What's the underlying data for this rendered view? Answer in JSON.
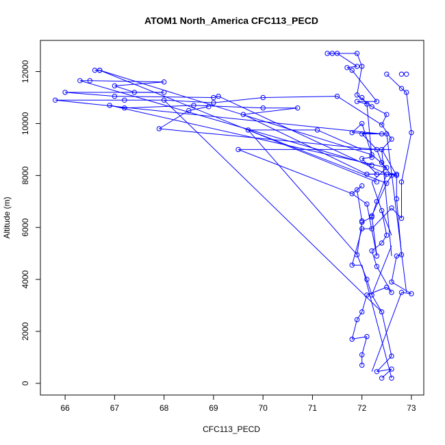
{
  "chart_data": {
    "type": "line",
    "title": "ATOM1 North_America CFC113_PECD",
    "xlabel": "CFC113_PECD",
    "ylabel": "Altitude (m)",
    "xlim": [
      65.5,
      73.25
    ],
    "ylim": [
      -450,
      13200
    ],
    "xticks": [
      66,
      67,
      68,
      69,
      70,
      71,
      72,
      73
    ],
    "yticks": [
      0,
      2000,
      4000,
      6000,
      8000,
      10000,
      12000
    ],
    "grid": false,
    "series_color": "#0000ff",
    "marker": "open-circle",
    "points": [
      [
        72.4,
        200
      ],
      [
        72.6,
        200
      ],
      [
        72.3,
        450
      ],
      [
        72.6,
        550
      ],
      [
        72.6,
        1050
      ],
      [
        72.0,
        700
      ],
      [
        72.0,
        1100
      ],
      [
        72.1,
        1800
      ],
      [
        71.8,
        1700
      ],
      [
        71.9,
        2450
      ],
      [
        72.0,
        2750
      ],
      [
        72.4,
        2750
      ],
      [
        72.1,
        3400
      ],
      [
        72.2,
        3400
      ],
      [
        72.5,
        3700
      ],
      [
        72.6,
        3500
      ],
      [
        72.8,
        3500
      ],
      [
        73.0,
        3450
      ],
      [
        72.6,
        3900
      ],
      [
        72.1,
        4000
      ],
      [
        72.3,
        4500
      ],
      [
        71.8,
        4550
      ],
      [
        71.9,
        4950
      ],
      [
        72.3,
        4900
      ],
      [
        72.7,
        4900
      ],
      [
        72.8,
        4950
      ],
      [
        72.2,
        5100
      ],
      [
        72.4,
        5400
      ],
      [
        72.5,
        5700
      ],
      [
        72.0,
        5950
      ],
      [
        72.2,
        5950
      ],
      [
        72.0,
        6200
      ],
      [
        72.0,
        6250
      ],
      [
        72.2,
        6400
      ],
      [
        72.2,
        6450
      ],
      [
        72.4,
        6650
      ],
      [
        72.6,
        6750
      ],
      [
        72.1,
        6900
      ],
      [
        72.8,
        6350
      ],
      [
        72.7,
        7100
      ],
      [
        72.3,
        7000
      ],
      [
        71.8,
        7300
      ],
      [
        71.9,
        7450
      ],
      [
        72.0,
        7600
      ],
      [
        72.3,
        7750
      ],
      [
        72.5,
        7700
      ],
      [
        72.8,
        7750
      ],
      [
        72.1,
        8050
      ],
      [
        72.3,
        8050
      ],
      [
        72.5,
        8050
      ],
      [
        72.5,
        8300
      ],
      [
        72.7,
        8000
      ],
      [
        72.7,
        8050
      ],
      [
        72.6,
        8000
      ],
      [
        72.2,
        8400
      ],
      [
        72.4,
        8500
      ],
      [
        72.2,
        8700
      ],
      [
        72.0,
        8650
      ],
      [
        72.2,
        8800
      ],
      [
        72.3,
        9000
      ],
      [
        72.4,
        9000
      ],
      [
        72.6,
        9400
      ],
      [
        72.4,
        9600
      ],
      [
        72.5,
        9600
      ],
      [
        72.0,
        9600
      ],
      [
        71.8,
        9650
      ],
      [
        73.0,
        9650
      ],
      [
        72.0,
        10000
      ],
      [
        72.4,
        9950
      ],
      [
        71.1,
        9750
      ],
      [
        69.7,
        9750
      ],
      [
        67.9,
        9800
      ],
      [
        69.5,
        9000
      ],
      [
        72.5,
        10350
      ],
      [
        72.2,
        10650
      ],
      [
        72.1,
        10750
      ],
      [
        71.9,
        10850
      ],
      [
        72.3,
        10850
      ],
      [
        72.0,
        11000
      ],
      [
        71.5,
        11050
      ],
      [
        71.9,
        11100
      ],
      [
        72.8,
        11350
      ],
      [
        72.9,
        11200
      ],
      [
        72.8,
        11900
      ],
      [
        72.9,
        11900
      ],
      [
        72.5,
        11900
      ],
      [
        71.8,
        12050
      ],
      [
        71.7,
        12150
      ],
      [
        71.9,
        12200
      ],
      [
        72.0,
        12200
      ],
      [
        71.9,
        12700
      ],
      [
        71.5,
        12700
      ],
      [
        71.4,
        12700
      ],
      [
        71.3,
        12700
      ],
      [
        66.7,
        12050
      ],
      [
        66.6,
        12050
      ],
      [
        66.7,
        12050
      ],
      [
        66.3,
        11650
      ],
      [
        66.5,
        11650
      ],
      [
        68.0,
        11600
      ],
      [
        67.0,
        11450
      ],
      [
        67.4,
        11200
      ],
      [
        68.0,
        11200
      ],
      [
        66.0,
        11200
      ],
      [
        67.0,
        11050
      ],
      [
        69.0,
        11000
      ],
      [
        69.1,
        11050
      ],
      [
        70.0,
        11000
      ],
      [
        65.8,
        10900
      ],
      [
        67.2,
        10900
      ],
      [
        68.0,
        10900
      ],
      [
        69.0,
        10800
      ],
      [
        66.9,
        10700
      ],
      [
        67.2,
        10600
      ],
      [
        68.6,
        10700
      ],
      [
        68.9,
        10650
      ],
      [
        68.5,
        10500
      ],
      [
        70.0,
        10600
      ],
      [
        70.7,
        10600
      ],
      [
        69.6,
        10350
      ]
    ],
    "segments": [
      [
        72.4,
        200,
        72.6,
        550
      ],
      [
        72.6,
        550,
        72.3,
        450
      ],
      [
        72.3,
        450,
        72.6,
        1050
      ],
      [
        72.6,
        1050,
        72.4,
        2750
      ],
      [
        72.4,
        2750,
        72.2,
        3400
      ],
      [
        72.2,
        3400,
        72.1,
        4000
      ],
      [
        72.1,
        4000,
        71.9,
        4950
      ],
      [
        71.9,
        4950,
        72.0,
        6200
      ],
      [
        72.0,
        6200,
        72.2,
        6400
      ],
      [
        72.2,
        6400,
        72.3,
        7000
      ],
      [
        72.3,
        7000,
        72.5,
        8050
      ],
      [
        72.5,
        8050,
        72.7,
        8000
      ],
      [
        72.7,
        8000,
        72.4,
        9000
      ],
      [
        72.4,
        9000,
        72.6,
        9400
      ],
      [
        72.6,
        9400,
        72.4,
        9950
      ],
      [
        72.4,
        9950,
        72.5,
        10350
      ],
      [
        72.5,
        10350,
        72.2,
        10650
      ],
      [
        72.2,
        10650,
        71.9,
        11100
      ],
      [
        71.9,
        11100,
        72.0,
        12200
      ],
      [
        72.0,
        12200,
        71.9,
        12700
      ],
      [
        72.0,
        700,
        72.0,
        1100
      ],
      [
        72.0,
        1100,
        72.1,
        1800
      ],
      [
        72.1,
        1800,
        71.8,
        1700
      ],
      [
        71.8,
        1700,
        71.9,
        2450
      ],
      [
        71.9,
        2450,
        72.0,
        2750
      ],
      [
        72.0,
        2750,
        72.1,
        3400
      ],
      [
        72.1,
        3400,
        72.5,
        3700
      ],
      [
        72.5,
        3700,
        72.6,
        3500
      ],
      [
        72.6,
        3500,
        72.3,
        4500
      ],
      [
        72.3,
        4500,
        72.2,
        5100
      ],
      [
        72.2,
        5100,
        72.4,
        5400
      ],
      [
        72.4,
        5400,
        72.5,
        5700
      ],
      [
        72.5,
        5700,
        72.4,
        6650
      ],
      [
        72.4,
        6650,
        72.2,
        7750
      ],
      [
        72.2,
        7750,
        72.5,
        8300
      ],
      [
        72.5,
        8300,
        72.2,
        8800
      ],
      [
        72.2,
        8800,
        72.0,
        10000
      ],
      [
        72.0,
        10000,
        71.8,
        9650
      ],
      [
        71.8,
        9650,
        72.4,
        9600
      ],
      [
        72.4,
        9600,
        72.5,
        9600
      ],
      [
        72.6,
        200,
        72.0,
        4550
      ],
      [
        72.0,
        4550,
        71.8,
        4550
      ],
      [
        71.8,
        4550,
        72.0,
        5950
      ],
      [
        72.0,
        5950,
        72.2,
        5950
      ],
      [
        72.2,
        5950,
        72.6,
        6750
      ],
      [
        72.6,
        6750,
        72.8,
        6350
      ],
      [
        72.8,
        6350,
        72.8,
        7750
      ],
      [
        72.8,
        7750,
        73.0,
        9650
      ],
      [
        73.0,
        9650,
        72.9,
        11200
      ],
      [
        72.9,
        11200,
        72.8,
        11350
      ],
      [
        72.8,
        11350,
        72.5,
        11900
      ],
      [
        72.2,
        450,
        72.8,
        3500
      ],
      [
        72.8,
        3500,
        73.0,
        3450
      ],
      [
        73.0,
        3450,
        72.6,
        3900
      ],
      [
        72.6,
        3900,
        72.7,
        4900
      ],
      [
        72.7,
        4900,
        72.8,
        4950
      ],
      [
        72.8,
        4950,
        72.7,
        7100
      ],
      [
        72.7,
        7100,
        72.7,
        8050
      ],
      [
        72.7,
        8050,
        72.1,
        8050
      ],
      [
        72.1,
        8050,
        72.3,
        8050
      ],
      [
        72.3,
        8050,
        72.0,
        8650
      ],
      [
        72.0,
        8650,
        72.2,
        8700
      ],
      [
        72.2,
        8700,
        72.1,
        10750
      ],
      [
        72.1,
        10750,
        71.9,
        10850
      ],
      [
        71.9,
        10850,
        72.3,
        10850
      ],
      [
        72.3,
        10850,
        71.8,
        12050
      ],
      [
        71.8,
        12050,
        71.7,
        12150
      ],
      [
        71.7,
        12150,
        71.9,
        12200
      ],
      [
        71.9,
        12200,
        71.5,
        12700
      ],
      [
        71.5,
        12700,
        71.4,
        12700
      ],
      [
        72.0,
        6250,
        71.9,
        7450
      ],
      [
        71.9,
        7450,
        72.0,
        7600
      ],
      [
        72.0,
        7600,
        71.8,
        7300
      ],
      [
        71.8,
        7300,
        72.1,
        6900
      ],
      [
        72.1,
        6900,
        72.3,
        4900
      ],
      [
        72.3,
        4900,
        72.2,
        6450
      ],
      [
        72.2,
        6450,
        72.5,
        7700
      ],
      [
        72.5,
        7700,
        72.6,
        8000
      ],
      [
        72.6,
        8000,
        72.4,
        8500
      ],
      [
        72.4,
        8500,
        72.3,
        9000
      ],
      [
        72.3,
        9000,
        72.0,
        9600
      ],
      [
        72.0,
        9600,
        72.5,
        9600
      ],
      [
        72.0,
        11000,
        72.1,
        10750
      ],
      [
        71.3,
        12700,
        71.9,
        12700
      ],
      [
        72.4,
        9600,
        65.8,
        10900
      ],
      [
        65.8,
        10900,
        67.2,
        10900
      ],
      [
        67.2,
        10900,
        68.0,
        10900
      ],
      [
        68.0,
        10900,
        69.0,
        10800
      ],
      [
        69.0,
        10800,
        70.0,
        11000
      ],
      [
        70.0,
        11000,
        71.5,
        11050
      ],
      [
        71.5,
        11050,
        72.4,
        9950
      ],
      [
        72.3,
        9000,
        67.9,
        9800
      ],
      [
        67.9,
        9800,
        68.5,
        10500
      ],
      [
        68.5,
        10500,
        68.9,
        10650
      ],
      [
        72.2,
        8400,
        66.3,
        11650
      ],
      [
        66.3,
        11650,
        66.5,
        11650
      ],
      [
        66.5,
        11650,
        68.0,
        11600
      ],
      [
        68.0,
        11600,
        67.0,
        11450
      ],
      [
        67.0,
        11450,
        67.4,
        11200
      ],
      [
        67.4,
        11200,
        68.0,
        11200
      ],
      [
        68.0,
        11200,
        66.0,
        11200
      ],
      [
        66.0,
        11200,
        67.0,
        11050
      ],
      [
        67.0,
        11050,
        69.0,
        11000
      ],
      [
        69.0,
        11000,
        69.1,
        11050
      ],
      [
        69.1,
        11050,
        72.5,
        8050
      ],
      [
        72.2,
        8800,
        66.7,
        12050
      ],
      [
        66.7,
        12050,
        66.6,
        12050
      ],
      [
        66.6,
        12050,
        66.7,
        12050
      ],
      [
        66.7,
        12050,
        72.3,
        7750
      ],
      [
        72.5,
        8300,
        66.9,
        10700
      ],
      [
        66.9,
        10700,
        67.2,
        10600
      ],
      [
        67.2,
        10600,
        68.6,
        10700
      ],
      [
        68.6,
        10700,
        70.0,
        10600
      ],
      [
        70.0,
        10600,
        70.7,
        10600
      ],
      [
        70.7,
        10600,
        69.6,
        10350
      ],
      [
        69.6,
        10350,
        72.1,
        8050
      ],
      [
        72.5,
        7700,
        69.7,
        9750
      ],
      [
        69.7,
        9750,
        71.1,
        9750
      ],
      [
        71.1,
        9750,
        72.0,
        9000
      ],
      [
        71.8,
        7300,
        69.5,
        9000
      ],
      [
        69.5,
        9000,
        72.6,
        9000
      ],
      [
        69.7,
        9750,
        71.9,
        4950
      ],
      [
        68.0,
        10900,
        72.4,
        2750
      ],
      [
        72.2,
        3400,
        72.6,
        5300
      ],
      [
        72.4,
        9000,
        72.6,
        4900
      ],
      [
        72.5,
        9600,
        72.9,
        3500
      ],
      [
        72.4,
        6650,
        72.6,
        5700
      ]
    ]
  }
}
